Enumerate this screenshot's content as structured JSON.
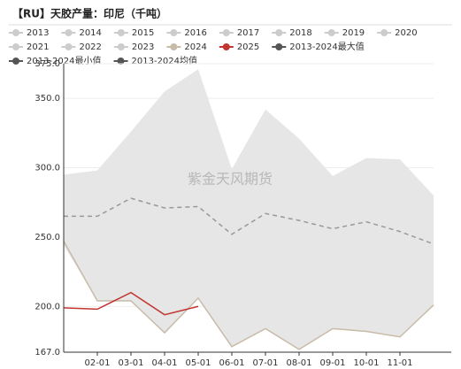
{
  "chart_data": {
    "type": "band-line",
    "title": "【RU】天胶产量：印尼（千吨）",
    "watermark": "紫金天风期货",
    "categories": [
      null,
      "02-01",
      "03-01",
      "04-01",
      "05-01",
      "06-01",
      "07-01",
      "08-01",
      "09-01",
      "10-01",
      "11-01",
      null
    ],
    "ylim": [
      167,
      375
    ],
    "yticks": [
      {
        "value": 167,
        "label": "167.0"
      },
      {
        "value": 200,
        "label": "200.0"
      },
      {
        "value": 250,
        "label": "250.0"
      },
      {
        "value": 300,
        "label": "300.0"
      },
      {
        "value": 350,
        "label": "350.0"
      },
      {
        "value": 375,
        "label": "375.0"
      }
    ],
    "grid": true,
    "hidden_series": [
      {
        "name": "2013",
        "color": "#cccccc"
      },
      {
        "name": "2014",
        "color": "#cccccc"
      },
      {
        "name": "2015",
        "color": "#cccccc"
      },
      {
        "name": "2016",
        "color": "#cccccc"
      },
      {
        "name": "2017",
        "color": "#cccccc"
      },
      {
        "name": "2018",
        "color": "#cccccc"
      },
      {
        "name": "2019",
        "color": "#cccccc"
      },
      {
        "name": "2020",
        "color": "#cccccc"
      },
      {
        "name": "2021",
        "color": "#cccccc"
      },
      {
        "name": "2022",
        "color": "#cccccc"
      },
      {
        "name": "2023",
        "color": "#cccccc"
      }
    ],
    "series": [
      {
        "name": "2024",
        "color": "#c8bba8",
        "values": [
          247,
          204,
          204,
          181,
          206,
          171,
          184,
          169,
          184,
          182,
          178,
          201
        ]
      },
      {
        "name": "2025",
        "color": "#c23531",
        "values": [
          199,
          198,
          210,
          194,
          200,
          null,
          null,
          null,
          null,
          null,
          null,
          null
        ]
      },
      {
        "name": "2013-2024最大值",
        "color": "#555555",
        "role": "band-max",
        "values": [
          295,
          298,
          326,
          355,
          371,
          299,
          342,
          321,
          294,
          307,
          306,
          280
        ]
      },
      {
        "name": "2013-2024最小值",
        "color": "#555555",
        "role": "band-min",
        "values": [
          244,
          204,
          204,
          181,
          206,
          171,
          184,
          169,
          184,
          182,
          178,
          201
        ]
      },
      {
        "name": "2013-2024均值",
        "color": "#555555",
        "role": "mean",
        "values": [
          265,
          265,
          278,
          271,
          272,
          252,
          267,
          262,
          256,
          261,
          254,
          245
        ]
      }
    ]
  }
}
